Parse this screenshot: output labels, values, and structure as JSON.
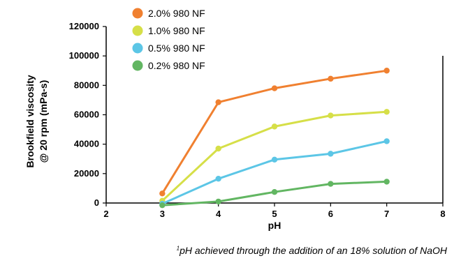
{
  "chart_data": {
    "type": "line",
    "title": "",
    "xlabel": "pH",
    "ylabel_line1": "Brookfield viscosity",
    "ylabel_line2": "@ 20 rpm (mPa-s)",
    "xlim": [
      2,
      8
    ],
    "ylim": [
      0,
      120000
    ],
    "x_ticks": [
      2,
      3,
      4,
      5,
      6,
      7,
      8
    ],
    "y_ticks": [
      0,
      20000,
      40000,
      60000,
      80000,
      100000,
      120000
    ],
    "legend_position": "top-left",
    "grid": false,
    "series": [
      {
        "name": "2.0% 980 NF",
        "color": "#f08030",
        "x": [
          3,
          4,
          5,
          6,
          7
        ],
        "y": [
          6500,
          68500,
          78000,
          84500,
          90000
        ]
      },
      {
        "name": "1.0% 980 NF",
        "color": "#d6df48",
        "x": [
          3,
          4,
          5,
          6,
          7
        ],
        "y": [
          1500,
          37000,
          52000,
          59500,
          62000
        ]
      },
      {
        "name": "0.5% 980 NF",
        "color": "#5cc6e6",
        "x": [
          3,
          4,
          5,
          6,
          7
        ],
        "y": [
          -500,
          16500,
          29500,
          33500,
          42000
        ]
      },
      {
        "name": "0.2% 980 NF",
        "color": "#62b662",
        "x": [
          3,
          4,
          5,
          6,
          7
        ],
        "y": [
          -1500,
          1000,
          7500,
          13000,
          14500
        ]
      }
    ]
  },
  "footnote": {
    "marker": "1",
    "text": "pH achieved through the addition of an 18% solution of NaOH"
  }
}
